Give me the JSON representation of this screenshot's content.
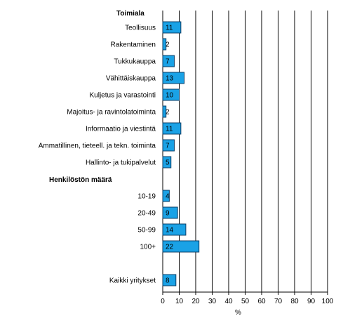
{
  "chart_data": {
    "type": "bar",
    "orientation": "horizontal",
    "xlabel": "%",
    "xlim": [
      0,
      100
    ],
    "x_ticks": [
      "0",
      "10",
      "20",
      "30",
      "40",
      "50",
      "60",
      "70",
      "80",
      "90",
      "100"
    ],
    "grid": "vertical",
    "colors": {
      "bar_fill": "#1aa2e6",
      "bar_stroke": "#0b3d66",
      "grid": "#000000"
    },
    "groups": [
      {
        "heading": "Toimiala",
        "items": [
          {
            "label": "Teollisuus",
            "value": 11
          },
          {
            "label": "Rakentaminen",
            "value": 2
          },
          {
            "label": "Tukkukauppa",
            "value": 7
          },
          {
            "label": "Vähittäiskauppa",
            "value": 13
          },
          {
            "label": "Kuljetus ja varastointi",
            "value": 10
          },
          {
            "label": "Majoitus- ja ravintolatoiminta",
            "value": 2
          },
          {
            "label": "Informaatio ja viestintä",
            "value": 11
          },
          {
            "label": "Ammatillinen, tieteell. ja tekn. toiminta",
            "value": 7
          },
          {
            "label": "Hallinto- ja tukipalvelut",
            "value": 5
          }
        ]
      },
      {
        "heading": "Henkilöstön määrä",
        "items": [
          {
            "label": "10-19",
            "value": 4
          },
          {
            "label": "20-49",
            "value": 9
          },
          {
            "label": "50-99",
            "value": 14
          },
          {
            "label": "100+",
            "value": 22
          }
        ]
      },
      {
        "heading": "",
        "items": [
          {
            "label": "Kaikki yritykset",
            "value": 8
          }
        ]
      }
    ]
  }
}
